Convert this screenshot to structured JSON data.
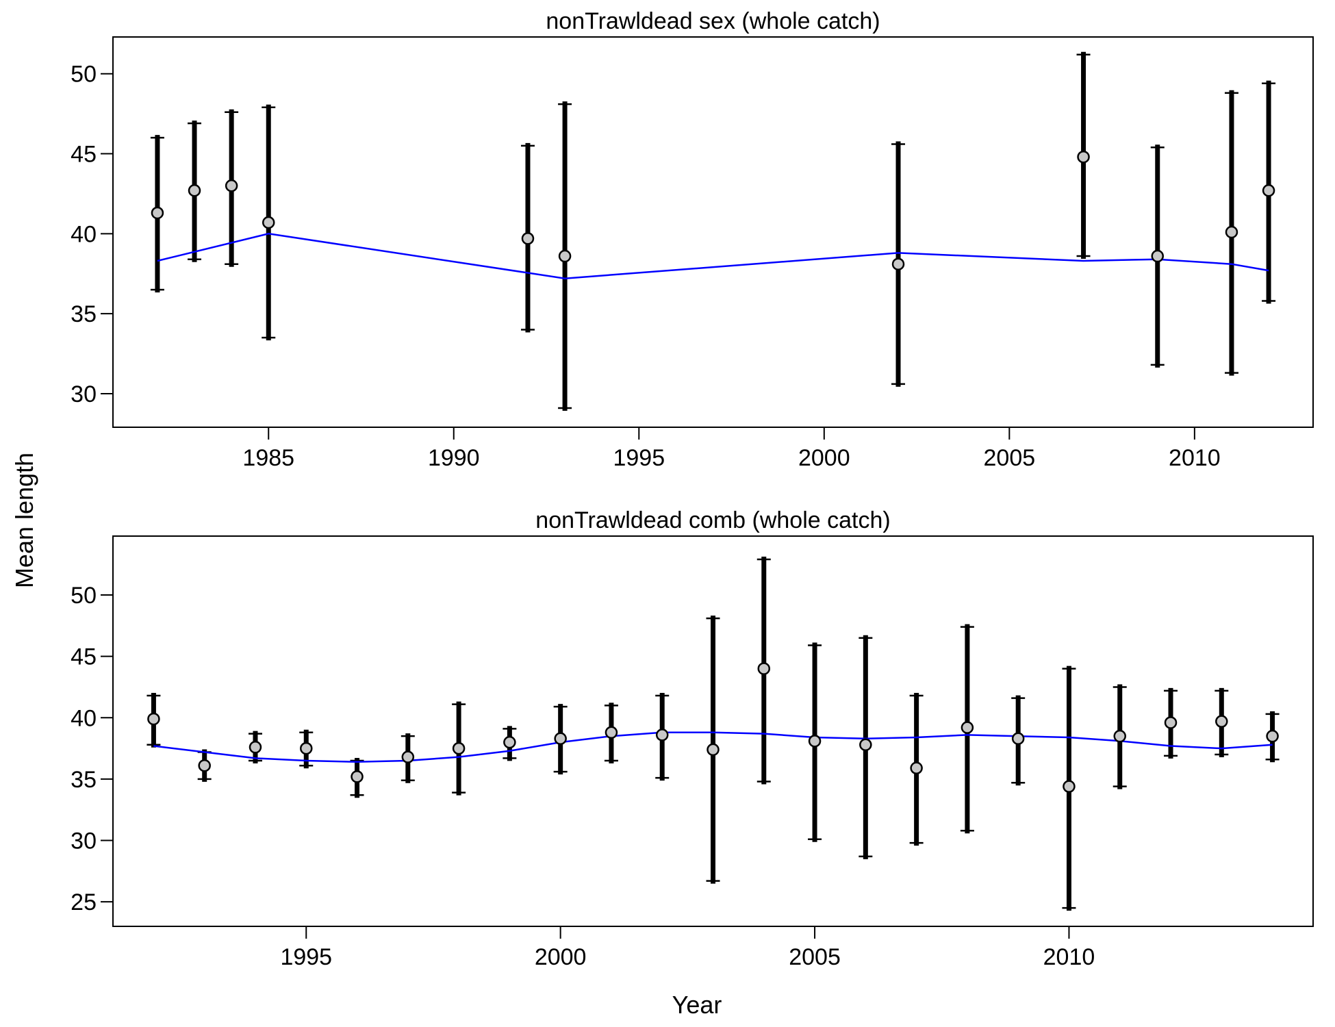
{
  "ylabel": "Mean length",
  "xlabel": "Year",
  "colors": {
    "fit": "#0000ff",
    "errorbar": "#000000",
    "point_fill": "#c8c8c8",
    "point_stroke": "#000000"
  },
  "chart_data": [
    {
      "type": "scatter",
      "title": "nonTrawldead sex (whole catch)",
      "xlim": [
        1980.8,
        2013.2
      ],
      "ylim": [
        27.9,
        52.3
      ],
      "xticks": [
        1985,
        1990,
        1995,
        2000,
        2005,
        2010
      ],
      "yticks": [
        30,
        35,
        40,
        45,
        50
      ],
      "series": [
        {
          "x": [
            1982,
            1983,
            1984,
            1985,
            1992,
            1993,
            2002,
            2007,
            2009,
            2011,
            2012
          ],
          "y": [
            41.3,
            42.7,
            43.0,
            40.7,
            39.7,
            38.6,
            38.1,
            44.8,
            38.6,
            40.1,
            42.7
          ],
          "lower": [
            36.5,
            38.4,
            38.1,
            33.5,
            34.0,
            29.1,
            30.6,
            38.6,
            31.8,
            31.3,
            35.8
          ],
          "upper": [
            46.0,
            46.9,
            47.6,
            47.9,
            45.5,
            48.1,
            45.6,
            51.2,
            45.4,
            48.8,
            49.4
          ]
        },
        {
          "type": "line",
          "x": [
            1982,
            1985,
            1993,
            2002,
            2007,
            2009,
            2011,
            2012
          ],
          "y": [
            38.3,
            40.0,
            37.2,
            38.8,
            38.3,
            38.4,
            38.1,
            37.7
          ]
        }
      ]
    },
    {
      "type": "scatter",
      "title": "nonTrawldead comb (whole catch)",
      "xlim": [
        1991.2,
        2014.8
      ],
      "ylim": [
        23.0,
        54.8
      ],
      "xticks": [
        1995,
        2000,
        2005,
        2010
      ],
      "yticks": [
        25,
        30,
        35,
        40,
        45,
        50
      ],
      "series": [
        {
          "x": [
            1992,
            1993,
            1994,
            1995,
            1996,
            1997,
            1998,
            1999,
            2000,
            2001,
            2002,
            2003,
            2004,
            2005,
            2006,
            2007,
            2008,
            2009,
            2010,
            2011,
            2012,
            2013,
            2014
          ],
          "y": [
            39.9,
            36.1,
            37.6,
            37.5,
            35.2,
            36.8,
            37.5,
            38.0,
            38.3,
            38.8,
            38.6,
            37.4,
            44.0,
            38.1,
            37.8,
            35.9,
            39.2,
            38.3,
            34.4,
            38.5,
            39.6,
            39.7,
            38.5
          ],
          "lower": [
            37.8,
            35.0,
            36.5,
            36.1,
            33.7,
            34.9,
            33.9,
            36.7,
            35.6,
            36.5,
            35.1,
            26.7,
            34.8,
            30.1,
            28.7,
            29.8,
            30.8,
            34.7,
            24.5,
            34.4,
            36.9,
            37.0,
            36.6
          ],
          "upper": [
            41.8,
            37.2,
            38.7,
            38.8,
            36.5,
            38.5,
            41.1,
            39.1,
            40.9,
            41.0,
            41.8,
            48.1,
            52.9,
            45.9,
            46.5,
            41.8,
            47.4,
            41.6,
            44.0,
            42.5,
            42.2,
            42.2,
            40.3
          ]
        },
        {
          "type": "line",
          "x": [
            1992,
            1993,
            1994,
            1995,
            1996,
            1997,
            1998,
            1999,
            2000,
            2001,
            2002,
            2003,
            2004,
            2005,
            2006,
            2007,
            2008,
            2009,
            2010,
            2011,
            2012,
            2013,
            2014
          ],
          "y": [
            37.7,
            37.2,
            36.7,
            36.5,
            36.4,
            36.5,
            36.8,
            37.3,
            38.0,
            38.5,
            38.8,
            38.8,
            38.7,
            38.4,
            38.3,
            38.4,
            38.6,
            38.5,
            38.4,
            38.1,
            37.7,
            37.5,
            37.8
          ]
        }
      ]
    }
  ]
}
